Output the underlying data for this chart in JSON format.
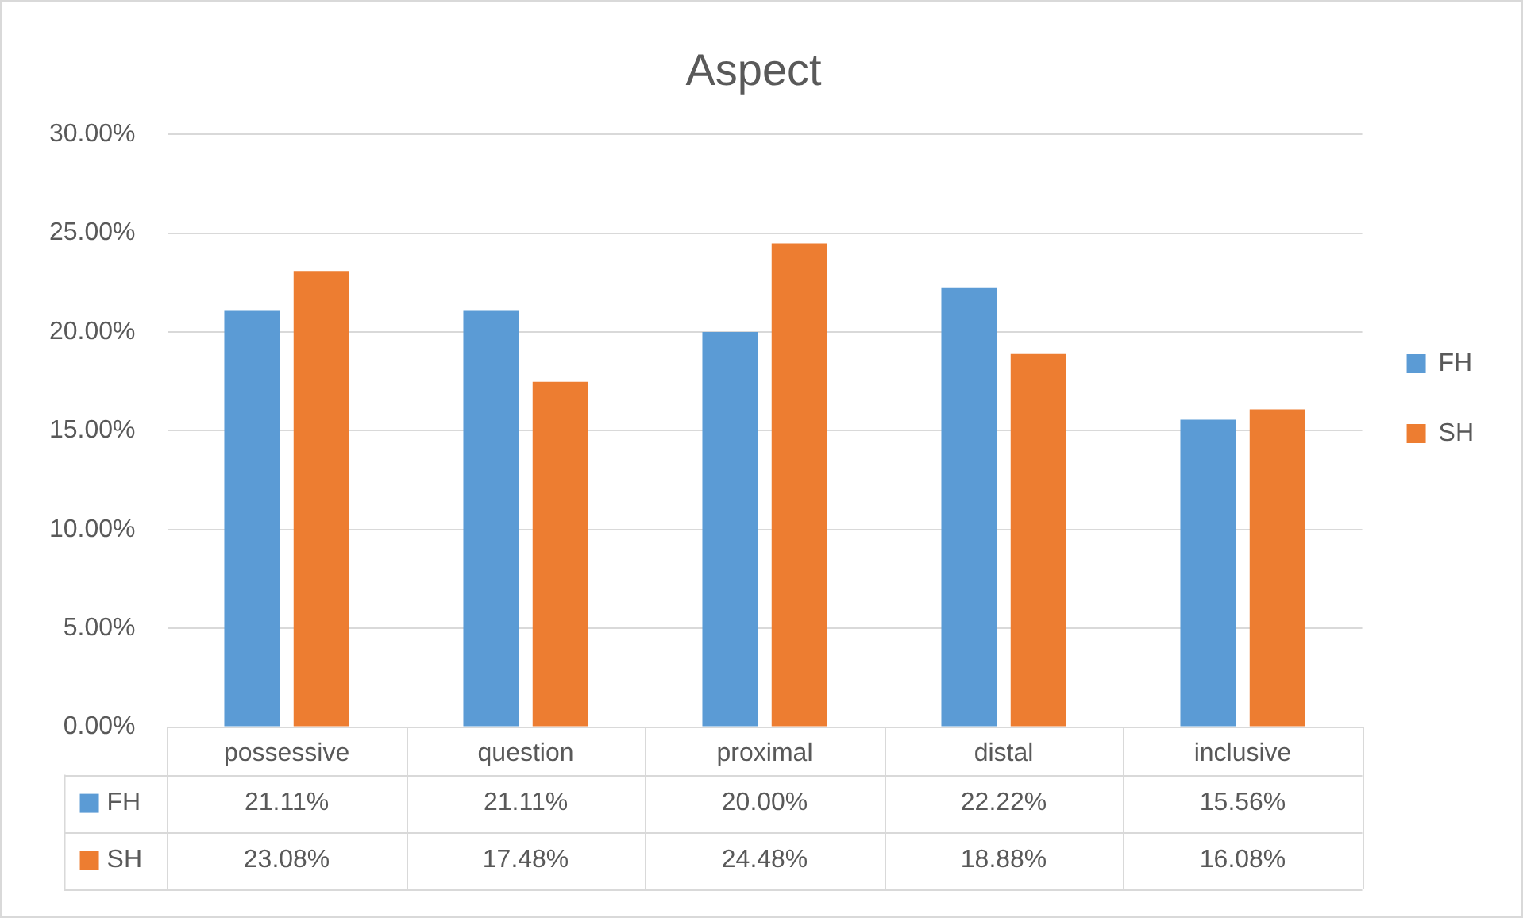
{
  "chart_data": {
    "type": "bar",
    "title": "Aspect",
    "categories": [
      "possessive",
      "question",
      "proximal",
      "distal",
      "inclusive"
    ],
    "series": [
      {
        "name": "FH",
        "color": "#5b9bd5",
        "values": [
          21.11,
          21.11,
          20.0,
          22.22,
          15.56
        ],
        "value_labels": [
          "21.11%",
          "21.11%",
          "20.00%",
          "22.22%",
          "15.56%"
        ]
      },
      {
        "name": "SH",
        "color": "#ed7d31",
        "values": [
          23.08,
          17.48,
          24.48,
          18.88,
          16.08
        ],
        "value_labels": [
          "23.08%",
          "17.48%",
          "24.48%",
          "18.88%",
          "16.08%"
        ]
      }
    ],
    "ylim": [
      0,
      30
    ],
    "yticks": [
      {
        "value": 0,
        "label": "0.00%"
      },
      {
        "value": 5,
        "label": "5.00%"
      },
      {
        "value": 10,
        "label": "10.00%"
      },
      {
        "value": 15,
        "label": "15.00%"
      },
      {
        "value": 20,
        "label": "20.00%"
      },
      {
        "value": 25,
        "label": "25.00%"
      },
      {
        "value": 30,
        "label": "30.00%"
      }
    ],
    "grid": "y",
    "legend": "right"
  }
}
